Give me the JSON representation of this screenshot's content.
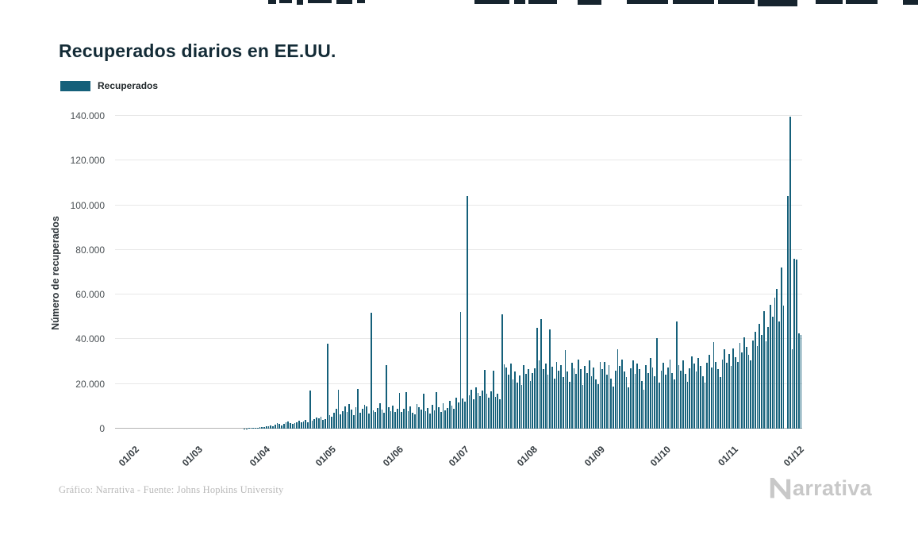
{
  "page": {
    "title": "Recuperados diarios en EE.UU.",
    "footer_credit": "Gráfico: Narrativa - Fuente: Johns Hopkins University",
    "brand": {
      "name": "Narrativa",
      "wordmark_text": "arrativa"
    }
  },
  "legend": {
    "label": "Recuperados"
  },
  "colors": {
    "bar": "#15607a",
    "title": "#132b36",
    "grid": "#e8e8e8",
    "baseline": "#b3b3b3",
    "axis_text": "#4a5054",
    "footer_text": "#b9b9b9",
    "brand_gray": "#c8c8c8"
  },
  "chart_data": {
    "type": "bar",
    "title": "Recuperados diarios en EE.UU.",
    "xlabel": "",
    "ylabel": "Número de recuperados",
    "ylim": [
      0,
      140000
    ],
    "grid": "horizontal",
    "legend_position": "top-left",
    "yticks": [
      {
        "value": 0,
        "label": "0"
      },
      {
        "value": 20000,
        "label": "20.000"
      },
      {
        "value": 40000,
        "label": "40.000"
      },
      {
        "value": 60000,
        "label": "60.000"
      },
      {
        "value": 80000,
        "label": "80.000"
      },
      {
        "value": 100000,
        "label": "100.000"
      },
      {
        "value": 120000,
        "label": "120.000"
      },
      {
        "value": 140000,
        "label": "140.000"
      }
    ],
    "xticks": [
      {
        "index": 10,
        "label": "01/02"
      },
      {
        "index": 39,
        "label": "01/03"
      },
      {
        "index": 70,
        "label": "01/04"
      },
      {
        "index": 100,
        "label": "01/05"
      },
      {
        "index": 131,
        "label": "01/06"
      },
      {
        "index": 161,
        "label": "01/07"
      },
      {
        "index": 192,
        "label": "01/08"
      },
      {
        "index": 223,
        "label": "01/09"
      },
      {
        "index": 253,
        "label": "01/10"
      },
      {
        "index": 284,
        "label": "01/11"
      },
      {
        "index": 314,
        "label": "01/12"
      }
    ],
    "series": [
      {
        "name": "Recuperados",
        "values": [
          0,
          0,
          0,
          0,
          0,
          0,
          0,
          0,
          0,
          0,
          0,
          0,
          0,
          0,
          0,
          0,
          0,
          0,
          0,
          0,
          0,
          0,
          0,
          0,
          0,
          0,
          0,
          0,
          0,
          0,
          0,
          0,
          0,
          0,
          0,
          0,
          0,
          0,
          0,
          0,
          0,
          0,
          0,
          0,
          0,
          0,
          0,
          0,
          0,
          0,
          0,
          0,
          0,
          0,
          0,
          0,
          0,
          0,
          0,
          100,
          150,
          200,
          250,
          300,
          400,
          500,
          600,
          700,
          800,
          900,
          1200,
          1500,
          1100,
          1800,
          2500,
          2000,
          1600,
          2200,
          2800,
          3200,
          2600,
          2100,
          2400,
          3000,
          3500,
          2900,
          3300,
          4000,
          2700,
          17000,
          3600,
          4200,
          5000,
          4500,
          5500,
          3800,
          4400,
          38000,
          6000,
          5200,
          7000,
          9000,
          17500,
          6500,
          8000,
          10000,
          7500,
          11000,
          8500,
          6000,
          9500,
          17800,
          7200,
          8800,
          10500,
          9800,
          6800,
          52000,
          8200,
          7600,
          9200,
          11500,
          8400,
          7000,
          28500,
          9600,
          8000,
          10200,
          7400,
          8900,
          16000,
          7500,
          9000,
          16500,
          8000,
          10000,
          7000,
          6500,
          11000,
          9500,
          8500,
          15500,
          7800,
          9200,
          6800,
          10800,
          8300,
          16200,
          9700,
          7600,
          11200,
          8100,
          9400,
          12500,
          10300,
          9000,
          14000,
          11800,
          52200,
          13500,
          12000,
          104000,
          15000,
          17500,
          13000,
          18500,
          16000,
          14500,
          17000,
          26300,
          15500,
          13800,
          16800,
          26000,
          14200,
          15800,
          13200,
          51000,
          28800,
          27500,
          24000,
          29300,
          22000,
          25500,
          20500,
          23800,
          19500,
          28500,
          24500,
          26800,
          21500,
          25000,
          27000,
          45200,
          30500,
          49200,
          26500,
          29000,
          24000,
          44500,
          27800,
          22500,
          30000,
          26000,
          28500,
          23000,
          35200,
          25500,
          21000,
          29500,
          27000,
          24500,
          31000,
          26800,
          19500,
          28000,
          25000,
          30500,
          23500,
          27500,
          22000,
          20000,
          29800,
          26500,
          30000,
          24000,
          28500,
          22500,
          19000,
          26000,
          35500,
          28000,
          31000,
          25500,
          23000,
          18500,
          27000,
          30500,
          24500,
          29000,
          26500,
          21500,
          17500,
          28500,
          25000,
          31500,
          27500,
          23500,
          40600,
          20500,
          26000,
          29500,
          24000,
          27500,
          31000,
          25000,
          22000,
          48000,
          28500,
          26000,
          30500,
          24500,
          21000,
          27000,
          32500,
          29000,
          25500,
          31500,
          28000,
          23500,
          20500,
          29500,
          33000,
          27500,
          38800,
          30000,
          26500,
          23000,
          31000,
          35500,
          29500,
          33500,
          28000,
          36000,
          32000,
          30000,
          38500,
          34000,
          41000,
          36500,
          33000,
          30500,
          39500,
          43500,
          37000,
          46800,
          42000,
          52500,
          39000,
          45500,
          55500,
          50000,
          58500,
          62600,
          48000,
          72000,
          55000,
          0,
          104000,
          139500,
          35500,
          76200,
          75800,
          42500,
          42000
        ]
      }
    ]
  }
}
